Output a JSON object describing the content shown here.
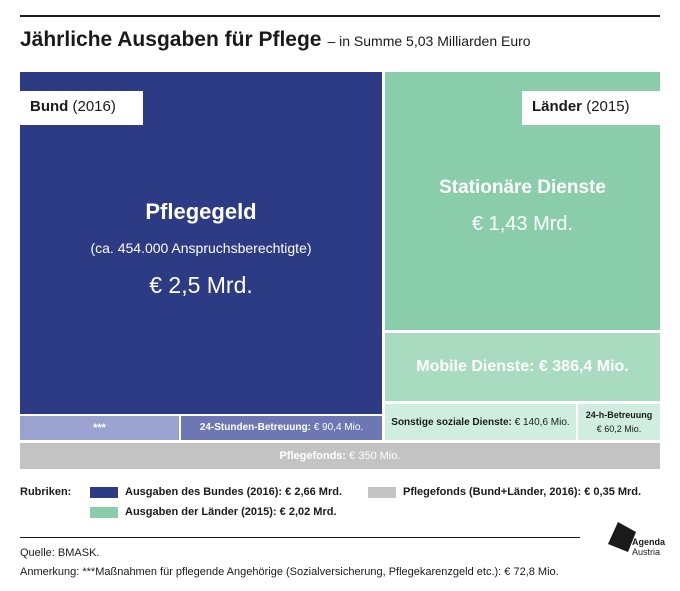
{
  "header": {
    "title": "Jährliche Ausgaben für Pflege",
    "subtitle": "– in Summe 5,03 Milliarden Euro"
  },
  "tags": {
    "bund_bold": "Bund",
    "bund_year": "(2016)",
    "laender_bold": "Länder",
    "laender_year": "(2015)"
  },
  "chart_data": {
    "type": "treemap",
    "title": "Jährliche Ausgaben für Pflege",
    "subtitle": "– in Summe 5,03 Milliarden Euro",
    "total": "5,03 Milliarden Euro",
    "items": [
      {
        "key": "pflegegeld",
        "label": "Pflegegeld",
        "note": "(ca. 454.000 Anspruchsberechtigte)",
        "value_text": "€ 2,5 Mrd.",
        "value_mio": 2500,
        "group": "Bund"
      },
      {
        "key": "sonstige_bund",
        "label": "***",
        "value_mio": 72.8,
        "group": "Bund"
      },
      {
        "key": "stunden24",
        "label": "24-Stunden-Betreuung:",
        "value_text": "€ 90,4 Mio.",
        "value_mio": 90.4,
        "group": "Bund"
      },
      {
        "key": "stationaer",
        "label": "Stationäre Dienste",
        "value_text": "€ 1,43 Mrd.",
        "value_mio": 1430,
        "group": "Länder"
      },
      {
        "key": "mobil",
        "label": "Mobile Dienste:",
        "value_text": "€ 386,4 Mio.",
        "value_mio": 386.4,
        "group": "Länder"
      },
      {
        "key": "sonstige_soziale",
        "label": "Sonstige soziale Dienste:",
        "value_text": "€ 140,6 Mio.",
        "value_mio": 140.6,
        "group": "Länder"
      },
      {
        "key": "h24",
        "label": "24-h-Betreuung",
        "value_text": "€ 60,2 Mio.",
        "value_mio": 60.2,
        "group": "Länder"
      },
      {
        "key": "pflegefonds",
        "label": "Pflegefonds:",
        "value_text": "€ 350 Mio.",
        "value_mio": 350,
        "group": "Pflegefonds"
      }
    ]
  },
  "legend": {
    "heading": "Rubriken:",
    "entries": [
      {
        "label": "Ausgaben des Bundes (2016): € 2,66 Mrd.",
        "color": "#2d3a84"
      },
      {
        "label": "Ausgaben der Länder (2015): € 2,02 Mrd.",
        "color": "#8acdaa"
      },
      {
        "label": "Pflegefonds (Bund+Länder, 2016): € 0,35 Mrd.",
        "color": "#c3c3c3"
      }
    ]
  },
  "footer": {
    "source": "Quelle: BMASK.",
    "note": "Anmerkung: ***Maßnahmen für pflegende Angehörige (Sozialversicherung, Pflegekarenzgeld etc.): € 72,8 Mio."
  },
  "logo": {
    "line1": "Agenda",
    "line2": "Austria"
  },
  "colors": {
    "bund": "#2d3a84",
    "bund_light1": "#9aa2cf",
    "bund_light2": "#6d77b4",
    "laender": "#8acdaa",
    "laender_light1": "#a8dbc0",
    "laender_light2": "#cfeee0",
    "fonds": "#c3c3c3"
  }
}
